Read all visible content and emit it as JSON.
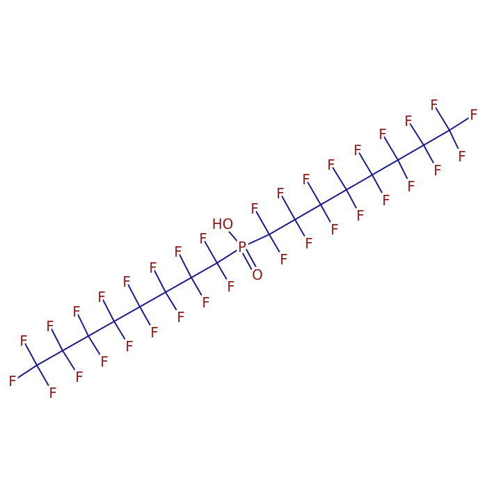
{
  "labels": [
    "HO",
    "P",
    "O",
    "F",
    "F",
    "F",
    "F",
    "F",
    "F",
    "F",
    "F",
    "F",
    "F",
    "F",
    "F",
    "F",
    "F",
    "F",
    "F",
    "F",
    "F",
    "F",
    "F",
    "F",
    "F",
    "F",
    "F",
    "F",
    "F",
    "F",
    "F",
    "F",
    "F",
    "F",
    "F",
    "F",
    "F"
  ]
}
